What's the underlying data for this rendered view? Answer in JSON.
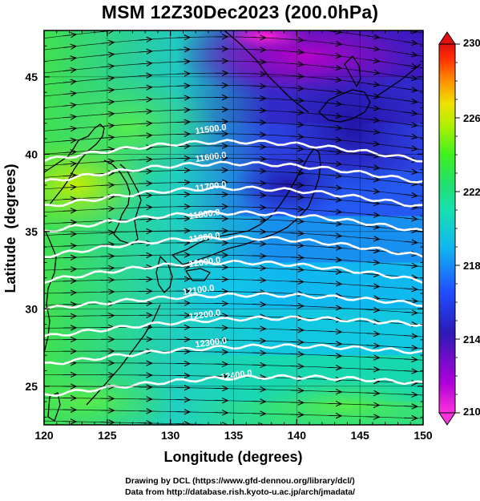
{
  "title": "MSM 12Z30Dec2023 (200.0hPa)",
  "axes": {
    "xlabel": "Longitude (degrees)",
    "ylabel": "Latitude  (degrees)",
    "x_range": [
      120,
      150
    ],
    "y_range": [
      22.5,
      48
    ],
    "x_ticks": [
      120,
      125,
      130,
      135,
      140,
      145,
      150
    ],
    "y_ticks": [
      25,
      30,
      35,
      40,
      45
    ]
  },
  "colorbar": {
    "range": [
      210,
      230
    ],
    "tick_labels": [
      "230",
      "226",
      "222",
      "218",
      "214",
      "210"
    ],
    "tick_values": [
      230,
      226,
      222,
      218,
      214,
      210
    ]
  },
  "contours": [
    {
      "label": "11500.0",
      "value": 11500,
      "label_lon": 132,
      "label_lat": 41.3,
      "lat_base": 40.6
    },
    {
      "label": "11600.0",
      "value": 11600,
      "label_lon": 132,
      "label_lat": 39.5,
      "lat_base": 39.2
    },
    {
      "label": "11700.0",
      "value": 11700,
      "label_lon": 132,
      "label_lat": 37.6,
      "lat_base": 37.6
    },
    {
      "label": "11800.0",
      "value": 11800,
      "label_lon": 131.5,
      "label_lat": 35.8,
      "lat_base": 36.0
    },
    {
      "label": "11900.0",
      "value": 11900,
      "label_lon": 131.5,
      "label_lat": 34.3,
      "lat_base": 34.4
    },
    {
      "label": "12000.0",
      "value": 12000,
      "label_lon": 131.5,
      "label_lat": 32.7,
      "lat_base": 32.8
    },
    {
      "label": "12100.0",
      "value": 12100,
      "label_lon": 131.0,
      "label_lat": 30.9,
      "lat_base": 31.0
    },
    {
      "label": "12200.0",
      "value": 12200,
      "label_lon": 131.5,
      "label_lat": 29.3,
      "lat_base": 29.2
    },
    {
      "label": "12300.0",
      "value": 12300,
      "label_lon": 132.0,
      "label_lat": 27.5,
      "lat_base": 27.4
    },
    {
      "label": "12400.0",
      "value": 12400,
      "label_lon": 134.0,
      "label_lat": 25.4,
      "lat_base": 25.4
    }
  ],
  "colors": {
    "contour": "#ffffff",
    "coast": "#000000",
    "vector": "#000000",
    "grid": "#000000"
  },
  "credits": {
    "line1": "Drawing by DCL (https://www.gfd-dennou.org/library/dcl/)",
    "line2": "Data from http://database.rish.kyoto-u.ac.jp/arch/jmadata/"
  }
}
